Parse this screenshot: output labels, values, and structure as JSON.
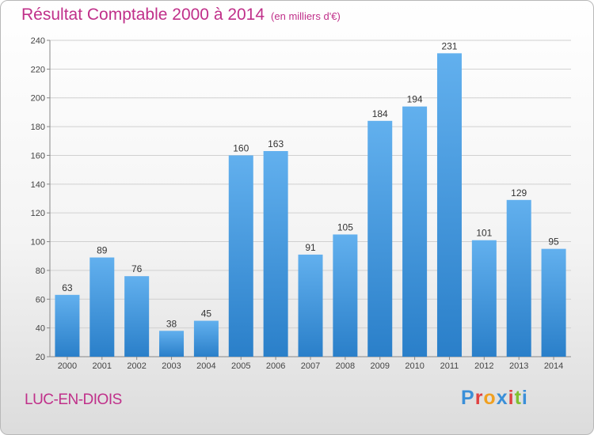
{
  "header": {
    "title": "Résultat Comptable 2000 à 2014",
    "subtitle": "(en milliers d'€)"
  },
  "footer": {
    "city": "LUC-EN-DIOIS",
    "logo": "Proxiti",
    "logo_colors": [
      "#3a8fd8",
      "#e04040",
      "#f0a020",
      "#3a8fd8",
      "#e04040",
      "#80c030",
      "#3a8fd8"
    ]
  },
  "colors": {
    "title": "#c0308a",
    "bar_light": "#62b0ee",
    "bar_dark": "#2a7fc9"
  },
  "chart_data": {
    "type": "bar",
    "categories": [
      "2000",
      "2001",
      "2002",
      "2003",
      "2004",
      "2005",
      "2006",
      "2007",
      "2008",
      "2009",
      "2010",
      "2011",
      "2012",
      "2013",
      "2014"
    ],
    "values": [
      63,
      89,
      76,
      38,
      45,
      160,
      163,
      91,
      105,
      184,
      194,
      231,
      101,
      129,
      95
    ],
    "title": "Résultat Comptable 2000 à 2014",
    "xlabel": "",
    "ylabel": "",
    "ylim": [
      20,
      240
    ],
    "yticks": [
      20,
      40,
      60,
      80,
      100,
      120,
      140,
      160,
      180,
      200,
      220,
      240
    ],
    "grid": true
  }
}
